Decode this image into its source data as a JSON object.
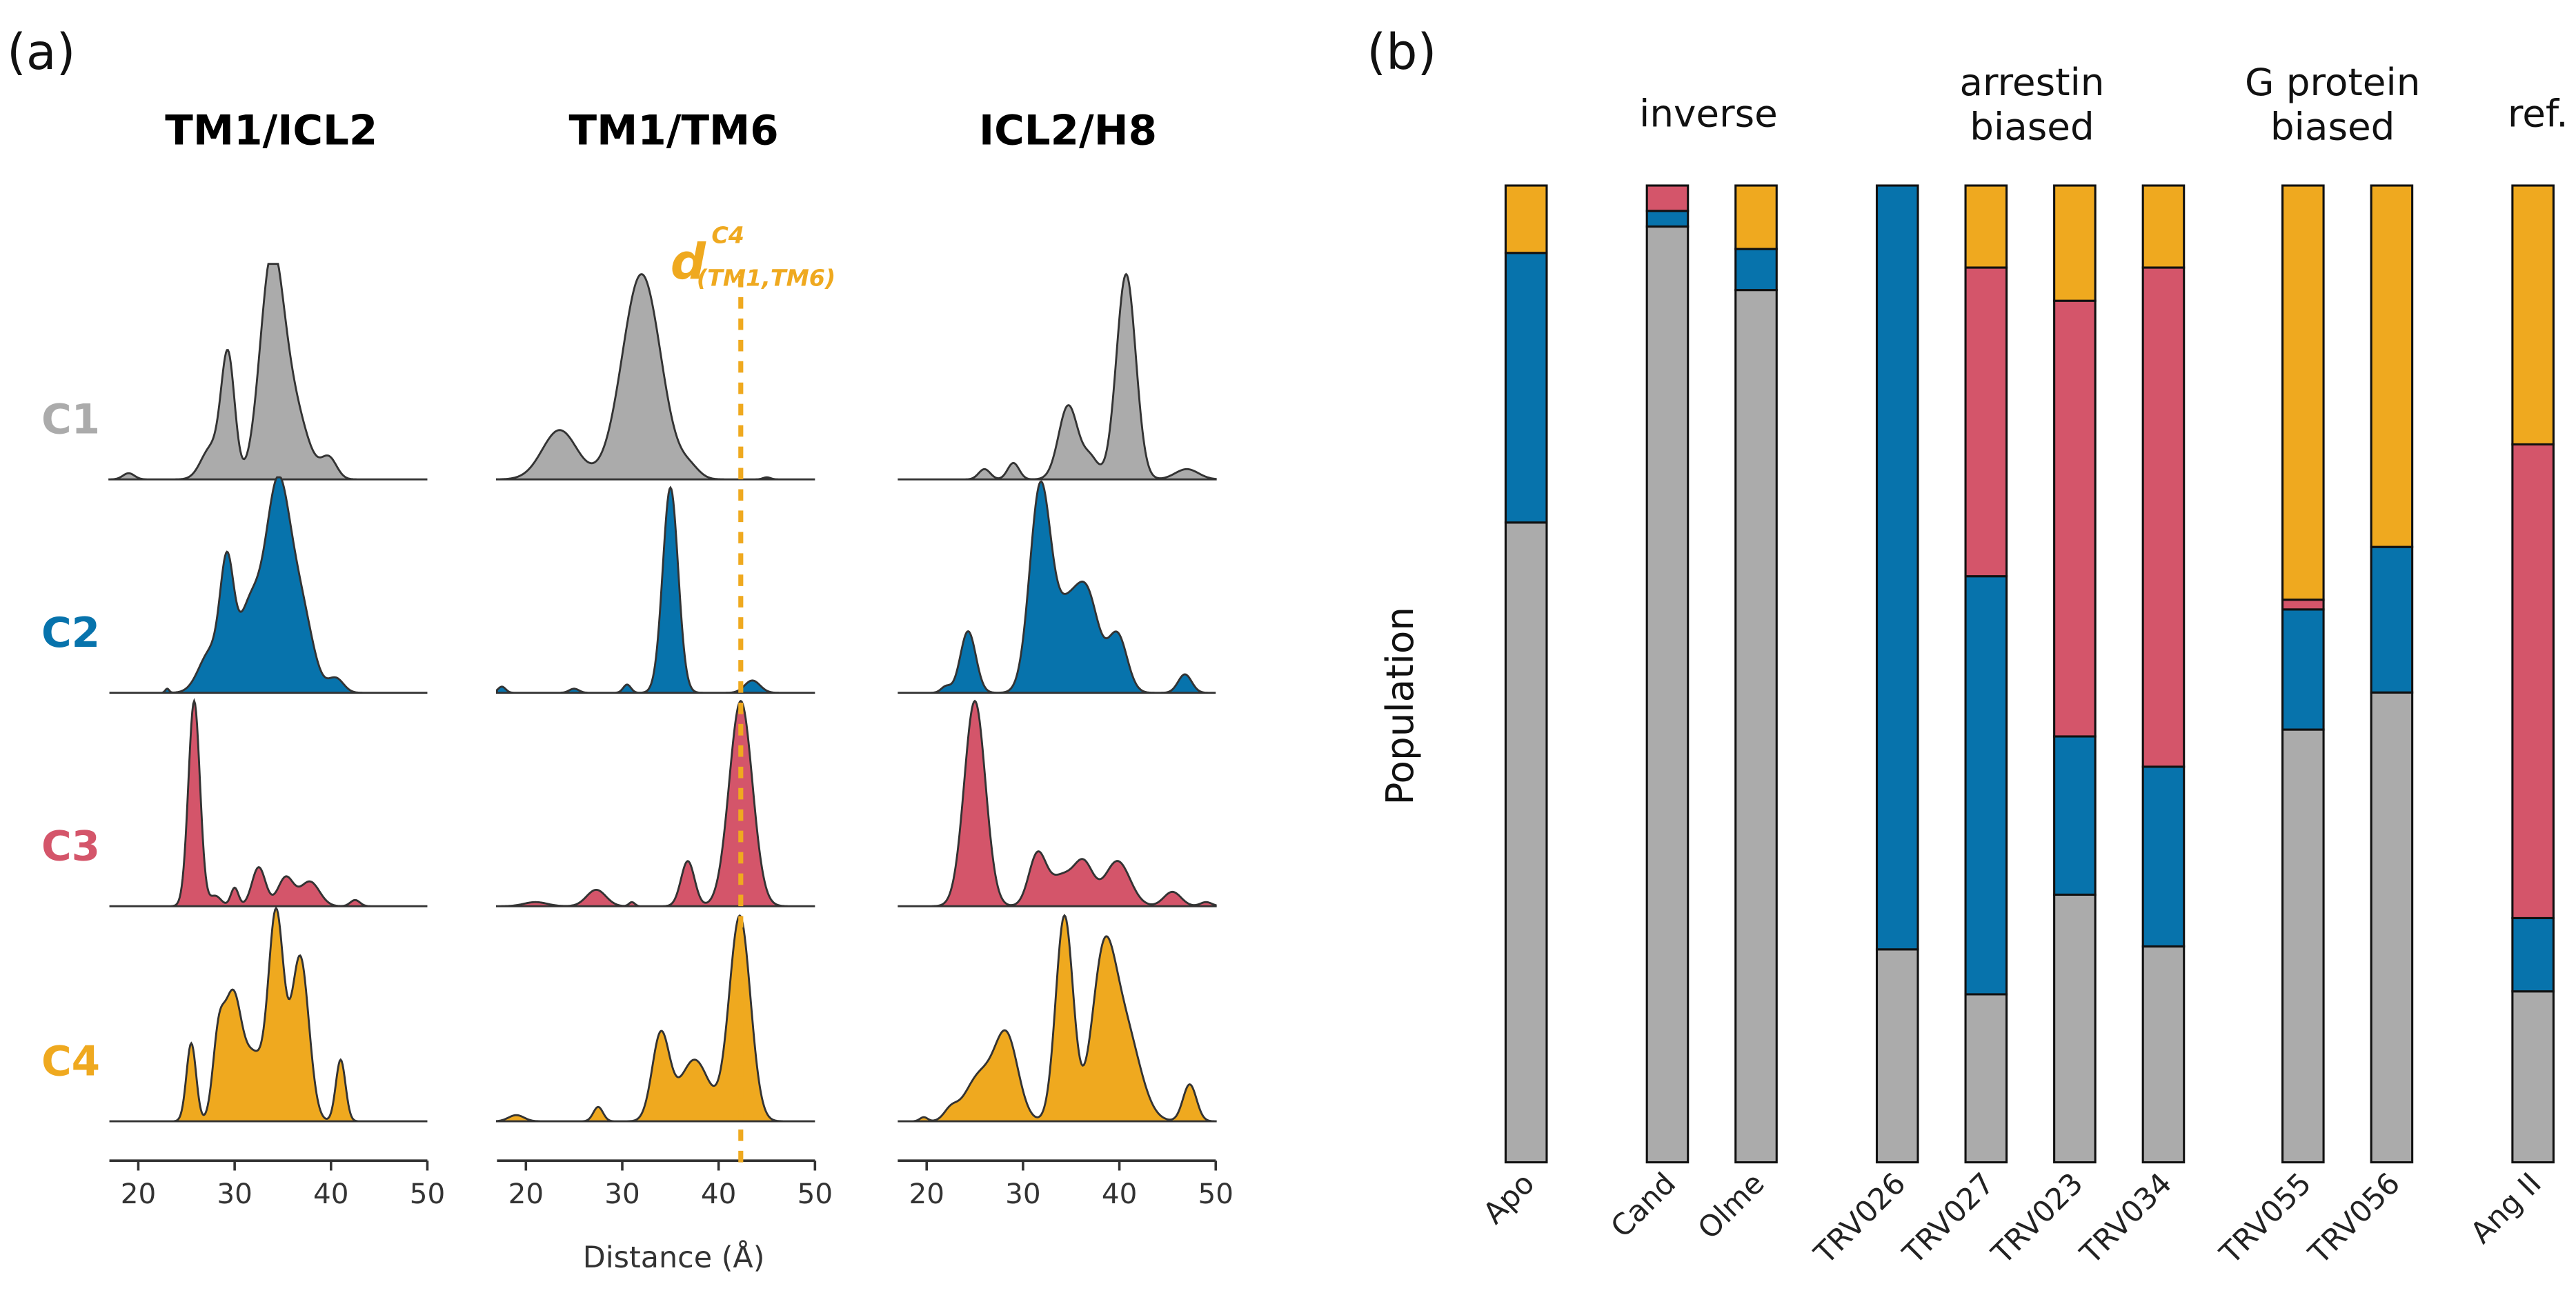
{
  "chart_data": [
    {
      "panel": "(a)",
      "type": "area",
      "xlabel": "Distance (Å)",
      "xlim": [
        17,
        50
      ],
      "xticks": [
        "20",
        "30",
        "40",
        "50"
      ],
      "annotation": {
        "base": "d",
        "sup": "C4",
        "sub": "(TM1,TM6)",
        "x": 42.3,
        "panel": "TM1/TM6",
        "style": "dashed vertical line"
      },
      "clusters": [
        {
          "name": "C1",
          "color": "#ABABAB"
        },
        {
          "name": "C2",
          "color": "#0773AC"
        },
        {
          "name": "C3",
          "color": "#D4556A"
        },
        {
          "name": "C4",
          "color": "#EFA91F"
        }
      ],
      "panels": [
        {
          "title": "TM1/ICL2",
          "series": [
            {
              "cluster": "C1",
              "peaks_center_height_width": [
                [
                  19,
                  0.03,
                  0.6
                ],
                [
                  27.5,
                  0.15,
                  1
                ],
                [
                  29.3,
                  0.6,
                  0.7
                ],
                [
                  33.8,
                  1,
                  1.2
                ],
                [
                  36,
                  0.35,
                  1.5
                ],
                [
                  39.8,
                  0.1,
                  0.8
                ]
              ]
            },
            {
              "cluster": "C2",
              "peaks_center_height_width": [
                [
                  23,
                  0.02,
                  0.2
                ],
                [
                  27.5,
                  0.2,
                  1.2
                ],
                [
                  29.2,
                  0.55,
                  0.7
                ],
                [
                  31.5,
                  0.4,
                  1.2
                ],
                [
                  34.5,
                  1,
                  1.3
                ],
                [
                  37,
                  0.35,
                  1.2
                ],
                [
                  40.5,
                  0.07,
                  0.8
                ]
              ]
            },
            {
              "cluster": "C3",
              "peaks_center_height_width": [
                [
                  25.8,
                  1,
                  0.6
                ],
                [
                  28,
                  0.05,
                  0.6
                ],
                [
                  30,
                  0.09,
                  0.4
                ],
                [
                  32.5,
                  0.19,
                  0.7
                ],
                [
                  35.3,
                  0.14,
                  0.8
                ],
                [
                  37.8,
                  0.12,
                  1
                ],
                [
                  42.5,
                  0.03,
                  0.5
                ]
              ]
            },
            {
              "cluster": "C4",
              "peaks_center_height_width": [
                [
                  25.5,
                  0.38,
                  0.5
                ],
                [
                  28.3,
                  0.35,
                  0.6
                ],
                [
                  29.8,
                  0.6,
                  0.9
                ],
                [
                  32,
                  0.3,
                  1
                ],
                [
                  34.3,
                  1,
                  0.8
                ],
                [
                  36.8,
                  0.8,
                  0.9
                ],
                [
                  41,
                  0.3,
                  0.5
                ]
              ]
            }
          ]
        },
        {
          "title": "TM1/TM6",
          "series": [
            {
              "cluster": "C1",
              "peaks_center_height_width": [
                [
                  23.5,
                  0.24,
                  1.8
                ],
                [
                  32,
                  1,
                  2
                ],
                [
                  37,
                  0.05,
                  1
                ],
                [
                  45,
                  0.01,
                  0.4
                ]
              ]
            },
            {
              "cluster": "C2",
              "peaks_center_height_width": [
                [
                  17.5,
                  0.03,
                  0.4
                ],
                [
                  25,
                  0.02,
                  0.5
                ],
                [
                  30.5,
                  0.04,
                  0.4
                ],
                [
                  35,
                  1,
                  0.8
                ],
                [
                  43.5,
                  0.06,
                  0.8
                ]
              ]
            },
            {
              "cluster": "C3",
              "peaks_center_height_width": [
                [
                  21,
                  0.02,
                  1.2
                ],
                [
                  27.3,
                  0.08,
                  1
                ],
                [
                  31,
                  0.02,
                  0.3
                ],
                [
                  36.8,
                  0.22,
                  0.7
                ],
                [
                  42.3,
                  1,
                  1.2
                ]
              ]
            },
            {
              "cluster": "C4",
              "peaks_center_height_width": [
                [
                  19,
                  0.03,
                  0.8
                ],
                [
                  27.5,
                  0.07,
                  0.5
                ],
                [
                  34,
                  0.42,
                  0.9
                ],
                [
                  37.5,
                  0.3,
                  1.5
                ],
                [
                  42.2,
                  1,
                  1.1
                ]
              ]
            }
          ]
        },
        {
          "title": "ICL2/H8",
          "series": [
            {
              "cluster": "C1",
              "peaks_center_height_width": [
                [
                  26,
                  0.05,
                  0.6
                ],
                [
                  29,
                  0.08,
                  0.6
                ],
                [
                  34.7,
                  0.36,
                  1
                ],
                [
                  37,
                  0.1,
                  0.8
                ],
                [
                  40.7,
                  1,
                  1
                ],
                [
                  47,
                  0.05,
                  1.2
                ]
              ]
            },
            {
              "cluster": "C2",
              "peaks_center_height_width": [
                [
                  22,
                  0.03,
                  0.5
                ],
                [
                  24.3,
                  0.3,
                  0.8
                ],
                [
                  31.8,
                  1,
                  1.1
                ],
                [
                  34.5,
                  0.35,
                  1.2
                ],
                [
                  36.7,
                  0.45,
                  1.2
                ],
                [
                  39.8,
                  0.28,
                  1
                ],
                [
                  46.8,
                  0.09,
                  0.7
                ]
              ]
            },
            {
              "cluster": "C3",
              "peaks_center_height_width": [
                [
                  25,
                  1,
                  1.1
                ],
                [
                  31.5,
                  0.25,
                  0.9
                ],
                [
                  34,
                  0.14,
                  1.2
                ],
                [
                  36.3,
                  0.2,
                  1
                ],
                [
                  39.8,
                  0.22,
                  1.3
                ],
                [
                  45.5,
                  0.07,
                  0.9
                ],
                [
                  49,
                  0.02,
                  0.6
                ]
              ]
            },
            {
              "cluster": "C4",
              "peaks_center_height_width": [
                [
                  19.7,
                  0.02,
                  0.4
                ],
                [
                  22.5,
                  0.05,
                  0.7
                ],
                [
                  25.5,
                  0.22,
                  1.5
                ],
                [
                  28.3,
                  0.4,
                  1.2
                ],
                [
                  34.3,
                  1,
                  0.9
                ],
                [
                  38.3,
                  0.7,
                  1.2
                ],
                [
                  40.5,
                  0.45,
                  1.6
                ],
                [
                  47.3,
                  0.18,
                  0.7
                ]
              ]
            }
          ]
        }
      ]
    },
    {
      "panel": "(b)",
      "type": "bar",
      "stacked": true,
      "ylabel": "Population",
      "ylim": [
        0,
        1
      ],
      "stack_order": [
        "C1",
        "C2",
        "C3",
        "C4"
      ],
      "colors": {
        "C1": "#ABABAB",
        "C2": "#0773AC",
        "C3": "#D4556A",
        "C4": "#EFA91F"
      },
      "groups": [
        {
          "label": "",
          "bars": [
            "Apo"
          ]
        },
        {
          "label": "inverse",
          "bars": [
            "Cand",
            "Olme"
          ]
        },
        {
          "label": "arrestin biased",
          "bars": [
            "TRV026",
            "TRV027",
            "TRV023",
            "TRV034"
          ]
        },
        {
          "label": "G protein biased",
          "bars": [
            "TRV055",
            "TRV056"
          ]
        },
        {
          "label": "ref.",
          "bars": [
            "Ang II"
          ]
        }
      ],
      "categories": [
        "Apo",
        "Cand",
        "Olme",
        "TRV026",
        "TRV027",
        "TRV023",
        "TRV034",
        "TRV055",
        "TRV056",
        "Ang II"
      ],
      "series": [
        {
          "name": "C1",
          "values": [
            0.655,
            0.958,
            0.893,
            0.218,
            0.172,
            0.274,
            0.221,
            0.443,
            0.481,
            0.175
          ]
        },
        {
          "name": "C2",
          "values": [
            0.276,
            0.016,
            0.042,
            0.782,
            0.428,
            0.162,
            0.184,
            0.123,
            0.149,
            0.075
          ]
        },
        {
          "name": "C3",
          "values": [
            0.0,
            0.026,
            0.0,
            0.0,
            0.316,
            0.446,
            0.511,
            0.01,
            0.0,
            0.485
          ]
        },
        {
          "name": "C4",
          "values": [
            0.069,
            0.0,
            0.065,
            0.0,
            0.084,
            0.118,
            0.084,
            0.424,
            0.37,
            0.265
          ]
        }
      ]
    }
  ]
}
